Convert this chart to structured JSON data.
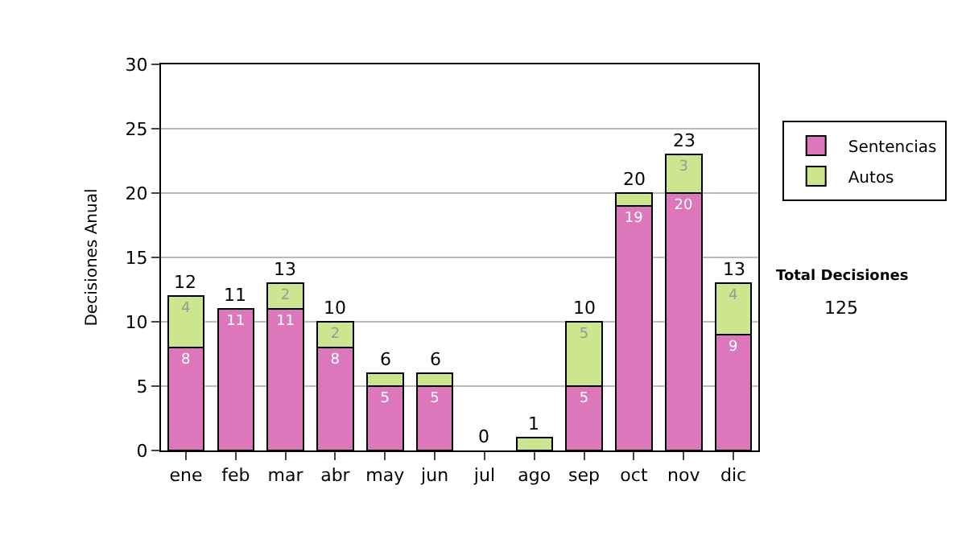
{
  "chart_data": {
    "type": "bar",
    "stacked": true,
    "ylabel": "Decisiones Anual",
    "categories": [
      "ene",
      "feb",
      "mar",
      "abr",
      "may",
      "jun",
      "jul",
      "ago",
      "sep",
      "oct",
      "nov",
      "dic"
    ],
    "series": [
      {
        "name": "Sentencias",
        "color": "#dd77bb",
        "values": [
          8,
          11,
          11,
          8,
          5,
          5,
          0,
          0,
          5,
          19,
          20,
          9
        ],
        "value_labels": [
          "8",
          "11",
          "11",
          "8",
          "5",
          "5",
          null,
          null,
          "5",
          "19",
          "20",
          "9"
        ]
      },
      {
        "name": "Autos",
        "color": "#cce68f",
        "values": [
          4,
          0,
          2,
          2,
          1,
          1,
          0,
          1,
          5,
          1,
          3,
          4
        ],
        "value_labels": [
          "4",
          null,
          "2",
          "2",
          null,
          null,
          null,
          null,
          "5",
          null,
          "3",
          "4"
        ]
      }
    ],
    "totals": [
      "12",
      "11",
      "13",
      "10",
      "6",
      "6",
      "0",
      "1",
      "10",
      "20",
      "23",
      "13"
    ],
    "ylim": [
      0,
      30
    ],
    "yticks": [
      0,
      5,
      10,
      15,
      20,
      25,
      30
    ],
    "grid": "y",
    "legend": "right",
    "annotations": [
      "Total Decisiones",
      "125"
    ]
  }
}
